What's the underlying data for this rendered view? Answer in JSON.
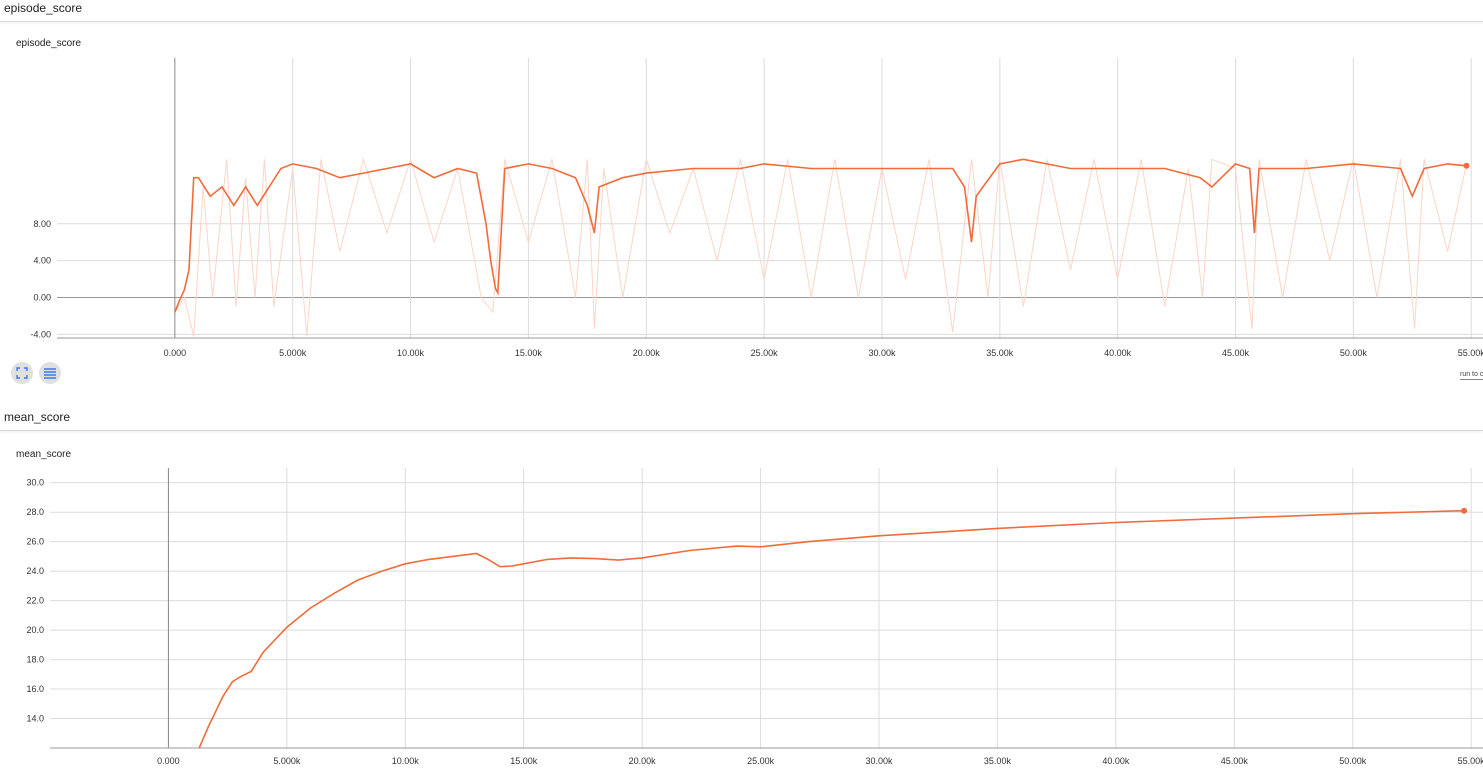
{
  "sections": [
    {
      "title": "episode_score"
    },
    {
      "title": "mean_score"
    }
  ],
  "controls": {
    "expand_icon": "fullscreen-icon",
    "data_icon": "list-icon",
    "run_to_label": "run to c"
  },
  "colors": {
    "smoothed": "#f26b3a",
    "raw": "#fbd5c6",
    "grid": "#dcdcdc",
    "axis": "#999999"
  },
  "chart_data": [
    {
      "type": "line",
      "title": "episode_score",
      "xlim": [
        -5000,
        55500
      ],
      "ylim": [
        -4.4,
        26
      ],
      "x_ticks": [
        0,
        5000,
        10000,
        15000,
        20000,
        25000,
        30000,
        35000,
        40000,
        45000,
        50000,
        55000
      ],
      "x_tick_labels": [
        "0.000",
        "5.000k",
        "10.00k",
        "15.00k",
        "20.00k",
        "25.00k",
        "30.00k",
        "35.00k",
        "40.00k",
        "45.00k",
        "50.00k",
        "55.00k"
      ],
      "y_ticks": [
        -4,
        0,
        4,
        8
      ],
      "y_tick_labels": [
        "-4.00",
        "0.00",
        "4.00",
        "8.00"
      ],
      "series": [
        {
          "role": "smoothed",
          "x": [
            0,
            200,
            400,
            600,
            800,
            1000,
            1500,
            2000,
            2500,
            3000,
            3500,
            4000,
            4500,
            5000,
            6000,
            7000,
            8000,
            9000,
            10000,
            11000,
            12000,
            12800,
            13200,
            13400,
            13600,
            13700,
            14000,
            15000,
            16000,
            17000,
            17500,
            17800,
            18000,
            19000,
            20000,
            22000,
            24000,
            25000,
            27000,
            30000,
            33000,
            33500,
            33800,
            34000,
            35000,
            36000,
            38000,
            40000,
            42000,
            43500,
            44000,
            45000,
            45600,
            45800,
            46000,
            48000,
            50000,
            52000,
            52500,
            53000,
            54000,
            54800
          ],
          "y": [
            -1.6,
            -0.3,
            0.8,
            3,
            13,
            13,
            11,
            12,
            10,
            12,
            10,
            12,
            14,
            14.5,
            14,
            13,
            13.5,
            14,
            14.5,
            13,
            14,
            13.5,
            8,
            4,
            1,
            0.5,
            14,
            14.5,
            14,
            13,
            10,
            7,
            12,
            13,
            13.5,
            14,
            14,
            14.5,
            14,
            14,
            14,
            12,
            6,
            11,
            14.5,
            15,
            14,
            14,
            14,
            13,
            12,
            14.5,
            14,
            7,
            14,
            14,
            14.5,
            14,
            11,
            14,
            14.5,
            14.3
          ]
        },
        {
          "role": "raw",
          "x": [
            0,
            400,
            800,
            1200,
            1600,
            2200,
            2600,
            3000,
            3400,
            3800,
            4200,
            5000,
            5600,
            6200,
            7000,
            8000,
            9000,
            10000,
            11000,
            12000,
            13000,
            13500,
            14000,
            15000,
            16000,
            17000,
            17500,
            17800,
            18200,
            19000,
            20000,
            21000,
            22000,
            23000,
            24000,
            25000,
            26000,
            27000,
            28000,
            29000,
            30000,
            31000,
            32000,
            33000,
            33800,
            34500,
            35000,
            36000,
            37000,
            38000,
            39000,
            40000,
            41000,
            42000,
            43000,
            43600,
            44000,
            45000,
            45700,
            46000,
            47000,
            48000,
            49000,
            50000,
            51000,
            52000,
            52600,
            53000,
            54000,
            54800
          ],
          "y": [
            -1.6,
            0,
            -4.2,
            12,
            0,
            15,
            -1,
            13,
            0,
            15,
            -1,
            14,
            -4.2,
            15,
            5,
            15,
            7,
            15,
            6,
            14,
            0,
            -1.6,
            15,
            6,
            15,
            0,
            15,
            -3.4,
            14,
            0,
            15,
            7,
            14,
            4,
            15,
            2,
            15,
            0,
            15,
            0,
            14,
            2,
            15,
            -3.8,
            15,
            0,
            15,
            -1,
            15,
            3,
            15,
            2,
            15,
            -1,
            14,
            0,
            15,
            14,
            -3.4,
            15,
            0,
            15,
            4,
            15,
            0,
            15,
            -3.4,
            15,
            5,
            14.5
          ]
        }
      ]
    },
    {
      "type": "line",
      "title": "mean_score",
      "xlim": [
        -5000,
        55500
      ],
      "ylim": [
        12,
        31
      ],
      "x_ticks": [
        0,
        5000,
        10000,
        15000,
        20000,
        25000,
        30000,
        35000,
        40000,
        45000,
        50000,
        55000
      ],
      "x_tick_labels": [
        "0.000",
        "5.000k",
        "10.00k",
        "15.00k",
        "20.00k",
        "25.00k",
        "30.00k",
        "35.00k",
        "40.00k",
        "45.00k",
        "50.00k",
        "55.00k"
      ],
      "y_ticks": [
        14,
        16,
        18,
        20,
        22,
        24,
        26,
        28,
        30
      ],
      "y_tick_labels": [
        "14.0",
        "16.0",
        "18.0",
        "20.0",
        "22.0",
        "24.0",
        "26.0",
        "28.0",
        "30.0"
      ],
      "series": [
        {
          "role": "smoothed",
          "x": [
            1300,
            1700,
            2000,
            2300,
            2700,
            3000,
            3500,
            4000,
            5000,
            6000,
            7000,
            8000,
            9000,
            10000,
            11000,
            12000,
            13000,
            13500,
            14000,
            14500,
            15000,
            16000,
            17000,
            18000,
            19000,
            20000,
            22000,
            24000,
            25000,
            27000,
            30000,
            35000,
            40000,
            45000,
            50000,
            54700
          ],
          "y": [
            12,
            13.5,
            14.5,
            15.5,
            16.5,
            16.8,
            17.2,
            18.5,
            20.2,
            21.5,
            22.5,
            23.4,
            24,
            24.5,
            24.8,
            25,
            25.2,
            24.8,
            24.3,
            24.35,
            24.5,
            24.8,
            24.9,
            24.85,
            24.75,
            24.9,
            25.4,
            25.7,
            25.65,
            26,
            26.4,
            26.9,
            27.3,
            27.6,
            27.9,
            28.1
          ]
        }
      ]
    }
  ]
}
